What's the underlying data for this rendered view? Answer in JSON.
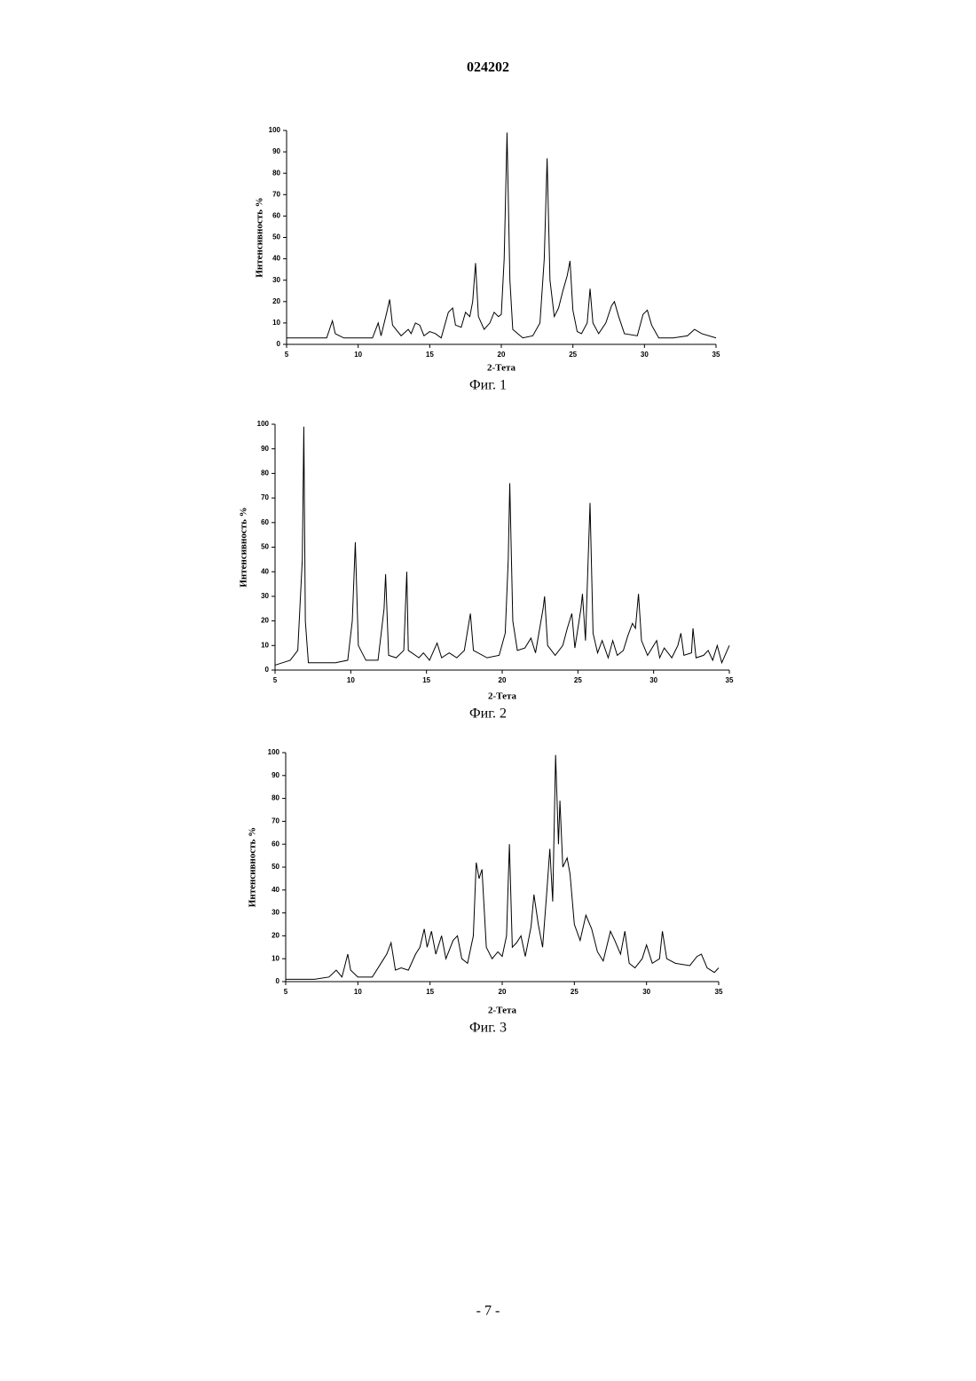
{
  "header": "024202",
  "footer": "- 7 -",
  "chart_data": [
    {
      "type": "line",
      "caption": "Фиг. 1",
      "x_label": "2-Тета",
      "y_label": "Интенсивность %",
      "color": "#000000",
      "xlim": [
        5,
        35
      ],
      "xticks": [
        5,
        10,
        15,
        20,
        25,
        30,
        35
      ],
      "ylim": [
        0,
        100
      ],
      "yticks": [
        0,
        10,
        20,
        30,
        40,
        50,
        60,
        70,
        80,
        90,
        100
      ],
      "x": [
        5,
        6,
        7,
        7.8,
        8.2,
        8.4,
        9,
        10,
        11,
        11.4,
        11.6,
        12,
        12.2,
        12.4,
        13,
        13.5,
        13.7,
        14,
        14.3,
        14.6,
        15,
        15.4,
        15.8,
        16.3,
        16.6,
        16.8,
        17.2,
        17.5,
        17.8,
        18,
        18.2,
        18.4,
        18.8,
        19.2,
        19.5,
        19.8,
        20,
        20.2,
        20.4,
        20.6,
        20.8,
        21.5,
        22.2,
        22.7,
        23,
        23.2,
        23.4,
        23.7,
        24,
        24.3,
        24.6,
        24.8,
        25,
        25.3,
        25.6,
        26,
        26.2,
        26.4,
        26.8,
        27.3,
        27.7,
        27.9,
        28.2,
        28.6,
        29.5,
        29.9,
        30.2,
        30.5,
        31,
        32,
        33,
        33.5,
        34,
        35
      ],
      "values": [
        3,
        3,
        3,
        3,
        11,
        5,
        3,
        3,
        3,
        10,
        4,
        15,
        21,
        9,
        4,
        7,
        5,
        10,
        9,
        4,
        6,
        5,
        3,
        15,
        17,
        9,
        8,
        15,
        13,
        20,
        38,
        13,
        7,
        10,
        15,
        13,
        14,
        40,
        99,
        30,
        7,
        3,
        4,
        10,
        40,
        87,
        30,
        13,
        17,
        25,
        32,
        39,
        16,
        6,
        5,
        10,
        26,
        10,
        5,
        10,
        18,
        20,
        13,
        5,
        4,
        14,
        16,
        9,
        3,
        3,
        4,
        7,
        5,
        3
      ]
    },
    {
      "type": "line",
      "caption": "Фиг. 2",
      "x_label": "2-Тета",
      "y_label": "Интенсивность %",
      "color": "#000000",
      "xlim": [
        5,
        35
      ],
      "xticks": [
        5,
        10,
        15,
        20,
        25,
        30,
        35
      ],
      "ylim": [
        0,
        100
      ],
      "yticks": [
        0,
        10,
        20,
        30,
        40,
        50,
        60,
        70,
        80,
        90,
        100
      ],
      "x": [
        5,
        5.5,
        6,
        6.5,
        6.8,
        6.9,
        7,
        7.2,
        8,
        9,
        9.8,
        10.1,
        10.3,
        10.5,
        11,
        11.8,
        12.2,
        12.3,
        12.5,
        13,
        13.5,
        13.7,
        13.8,
        14.5,
        14.8,
        15.2,
        15.7,
        16,
        16.5,
        17,
        17.5,
        17.9,
        18.1,
        19,
        19.8,
        20.2,
        20.4,
        20.5,
        20.7,
        21,
        21.5,
        21.9,
        22.2,
        22.7,
        22.8,
        23,
        23.5,
        24,
        24.3,
        24.6,
        24.8,
        25.2,
        25.3,
        25.5,
        25.8,
        26,
        26.3,
        26.6,
        27,
        27.3,
        27.6,
        28,
        28.3,
        28.6,
        28.8,
        29,
        29.2,
        29.6,
        30.2,
        30.4,
        30.7,
        31.2,
        31.6,
        31.8,
        32,
        32.5,
        32.6,
        32.8,
        33.3,
        33.6,
        33.9,
        34.2,
        34.5,
        35
      ],
      "values": [
        2,
        3,
        4,
        8,
        45,
        99,
        20,
        3,
        3,
        3,
        4,
        20,
        52,
        10,
        4,
        4,
        25,
        39,
        6,
        5,
        8,
        40,
        8,
        5,
        7,
        4,
        11,
        5,
        7,
        5,
        8,
        23,
        8,
        5,
        6,
        15,
        45,
        76,
        20,
        8,
        9,
        13,
        7,
        25,
        30,
        10,
        6,
        10,
        17,
        23,
        9,
        25,
        31,
        12,
        68,
        15,
        7,
        12,
        5,
        12,
        6,
        8,
        14,
        19,
        17,
        31,
        12,
        6,
        12,
        5,
        9,
        5,
        10,
        15,
        6,
        7,
        17,
        5,
        6,
        8,
        4,
        10,
        3,
        10
      ]
    },
    {
      "type": "line",
      "caption": "Фиг. 3",
      "x_label": "2-Тета",
      "y_label": "Интенсивность %",
      "color": "#000000",
      "xlim": [
        5,
        35
      ],
      "xticks": [
        5,
        10,
        15,
        20,
        25,
        30,
        35
      ],
      "ylim": [
        0,
        100
      ],
      "yticks": [
        0,
        10,
        20,
        30,
        40,
        50,
        60,
        70,
        80,
        90,
        100
      ],
      "x": [
        5,
        6,
        7,
        8,
        8.5,
        8.9,
        9.3,
        9.5,
        10,
        11,
        11.8,
        12,
        12.3,
        12.6,
        13,
        13.5,
        14,
        14.3,
        14.6,
        14.8,
        15.1,
        15.4,
        15.8,
        16.1,
        16.6,
        16.9,
        17.2,
        17.6,
        18,
        18.2,
        18.4,
        18.6,
        18.9,
        19.3,
        19.7,
        20,
        20.3,
        20.5,
        20.7,
        21,
        21.3,
        21.6,
        22,
        22.2,
        22.5,
        22.8,
        23.1,
        23.3,
        23.5,
        23.7,
        23.9,
        24,
        24.2,
        24.5,
        24.7,
        25,
        25.4,
        25.8,
        26.2,
        26.6,
        27,
        27.5,
        27.8,
        28.2,
        28.5,
        28.8,
        29.2,
        29.7,
        30,
        30.4,
        30.9,
        31.1,
        31.4,
        32,
        33,
        33.5,
        33.8,
        34.2,
        34.7,
        35
      ],
      "values": [
        1,
        1,
        1,
        2,
        5,
        2,
        12,
        5,
        2,
        2,
        10,
        12,
        17,
        5,
        6,
        5,
        12,
        15,
        23,
        15,
        22,
        12,
        20,
        10,
        18,
        20,
        10,
        8,
        20,
        52,
        45,
        49,
        15,
        10,
        13,
        11,
        20,
        60,
        15,
        17,
        20,
        11,
        24,
        38,
        25,
        15,
        40,
        58,
        35,
        99,
        60,
        79,
        50,
        54,
        47,
        25,
        18,
        29,
        23,
        13,
        9,
        22,
        18,
        12,
        22,
        8,
        6,
        10,
        16,
        8,
        10,
        22,
        10,
        8,
        7,
        11,
        12,
        6,
        4,
        6
      ]
    }
  ]
}
